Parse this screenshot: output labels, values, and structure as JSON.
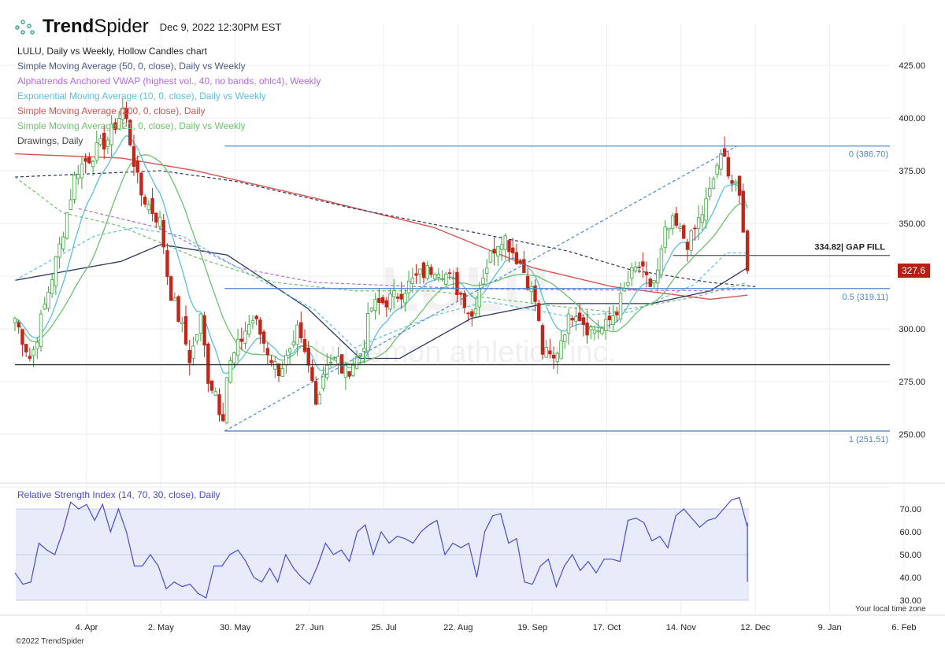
{
  "header": {
    "brand_bold": "Trend",
    "brand_light": "Spider",
    "timestamp": "Dec 9, 2022 12:30PM EST",
    "copyright": "©2022 TrendSpider",
    "timezone_note": "Your local time zone",
    "watermark": "LULU",
    "watermark_sub": "lululemon athletica inc."
  },
  "legend": [
    {
      "text": "LULU, Daily vs Weekly, Hollow Candles chart",
      "color": "#222222"
    },
    {
      "text": "Simple Moving Average (50, 0, close), Daily vs Weekly",
      "color": "#4a5a80"
    },
    {
      "text": "Alphatrends Anchored VWAP (highest vol., 40, no bands, ohlc4), Weekly",
      "color": "#b36ae0"
    },
    {
      "text": "Exponential Moving Average (10, 0, close), Daily vs Weekly",
      "color": "#5bbfe0"
    },
    {
      "text": "Simple Moving Average (200, 0, close), Daily",
      "color": "#d9534f"
    },
    {
      "text": "Simple Moving Average (21, 0, close), Daily vs Weekly",
      "color": "#6cc26c"
    },
    {
      "text": "Drawings, Daily",
      "color": "#444444"
    }
  ],
  "colors": {
    "up": "#3aa83a",
    "down": "#c0271b",
    "sma50": "#2c3560",
    "vwap": "#b36ae0",
    "ema10": "#5bbfe0",
    "sma200": "#d9534f",
    "sma21": "#6cc26c",
    "fib": "#4a86d0",
    "rsi": "#4a4ad0",
    "rsi_band": "#e8ecfa"
  },
  "chart_data": {
    "type": "candlestick",
    "symbol": "LULU",
    "ylim": [
      225,
      432
    ],
    "y_ticks": [
      "425.00",
      "400.00",
      "375.00",
      "350.00",
      "300.00",
      "275.00",
      "250.00"
    ],
    "y_tick_values": [
      425,
      400,
      375,
      350,
      300,
      275,
      250
    ],
    "x_unit": "calendar days since 2022-03-08",
    "x_ticks": [
      {
        "label": "4. Apr",
        "day": 27
      },
      {
        "label": "2. May",
        "day": 55
      },
      {
        "label": "30. May",
        "day": 83
      },
      {
        "label": "27. Jun",
        "day": 111
      },
      {
        "label": "25. Jul",
        "day": 139
      },
      {
        "label": "22. Aug",
        "day": 167
      },
      {
        "label": "19. Sep",
        "day": 195
      },
      {
        "label": "17. Oct",
        "day": 223
      },
      {
        "label": "14. Nov",
        "day": 251
      },
      {
        "label": "12. Dec",
        "day": 279
      },
      {
        "label": "9. Jan",
        "day": 307
      },
      {
        "label": "6. Feb",
        "day": 335
      }
    ],
    "close_keypoints": [
      [
        0,
        305
      ],
      [
        6,
        285
      ],
      [
        17,
        340
      ],
      [
        23,
        375
      ],
      [
        35,
        390
      ],
      [
        41,
        405
      ],
      [
        47,
        365
      ],
      [
        55,
        350
      ],
      [
        58,
        320
      ],
      [
        63,
        300
      ],
      [
        66,
        285
      ],
      [
        70,
        305
      ],
      [
        73,
        275
      ],
      [
        76,
        270
      ],
      [
        78,
        255
      ],
      [
        80,
        280
      ],
      [
        87,
        300
      ],
      [
        90,
        305
      ],
      [
        95,
        290
      ],
      [
        99,
        280
      ],
      [
        105,
        290
      ],
      [
        106,
        300
      ],
      [
        111,
        280
      ],
      [
        114,
        265
      ],
      [
        117,
        285
      ],
      [
        122,
        285
      ],
      [
        124,
        278
      ],
      [
        131,
        290
      ],
      [
        134,
        310
      ],
      [
        143,
        315
      ],
      [
        152,
        325
      ],
      [
        159,
        330
      ],
      [
        163,
        325
      ],
      [
        169,
        315
      ],
      [
        172,
        305
      ],
      [
        176,
        325
      ],
      [
        181,
        340
      ],
      [
        184,
        345
      ],
      [
        187,
        338
      ],
      [
        191,
        330
      ],
      [
        194,
        320
      ],
      [
        197,
        310
      ],
      [
        198,
        290
      ],
      [
        203,
        285
      ],
      [
        207,
        300
      ],
      [
        211,
        310
      ],
      [
        216,
        300
      ],
      [
        222,
        300
      ],
      [
        227,
        310
      ],
      [
        232,
        325
      ],
      [
        235,
        330
      ],
      [
        239,
        320
      ],
      [
        242,
        325
      ],
      [
        245,
        345
      ],
      [
        248,
        350
      ],
      [
        251,
        345
      ],
      [
        254,
        340
      ],
      [
        257,
        350
      ],
      [
        259,
        355
      ],
      [
        262,
        365
      ],
      [
        265,
        380
      ],
      [
        268,
        380
      ],
      [
        270,
        370
      ],
      [
        272,
        370
      ],
      [
        276,
        327.6
      ]
    ],
    "last_price": "327.6",
    "overlays": {
      "sma50_weekly_dashed": [
        [
          0,
          372
        ],
        [
          55,
          375
        ],
        [
          83,
          370
        ],
        [
          128,
          357
        ],
        [
          172,
          346
        ],
        [
          208,
          337
        ],
        [
          232,
          328
        ],
        [
          262,
          322
        ],
        [
          279,
          320
        ]
      ],
      "sma50_daily": [
        [
          0,
          323
        ],
        [
          40,
          332
        ],
        [
          55,
          340
        ],
        [
          80,
          335
        ],
        [
          110,
          310
        ],
        [
          130,
          286
        ],
        [
          145,
          286
        ],
        [
          172,
          305
        ],
        [
          200,
          312
        ],
        [
          220,
          312
        ],
        [
          240,
          312
        ],
        [
          262,
          318
        ],
        [
          276,
          329
        ]
      ],
      "sma200_daily": [
        [
          0,
          383
        ],
        [
          40,
          381
        ],
        [
          68,
          375
        ],
        [
          113,
          362
        ],
        [
          158,
          348
        ],
        [
          195,
          329
        ],
        [
          225,
          320
        ],
        [
          262,
          314
        ],
        [
          276,
          316
        ]
      ],
      "vwap_weekly": [
        [
          24,
          357
        ],
        [
          54,
          348
        ],
        [
          84,
          329
        ],
        [
          113,
          322
        ],
        [
          172,
          319
        ],
        [
          262,
          318
        ],
        [
          276,
          319
        ]
      ],
      "ema10_weekly_dashed": [
        [
          0,
          323
        ],
        [
          30,
          344
        ],
        [
          45,
          348
        ],
        [
          63,
          344
        ],
        [
          84,
          329
        ],
        [
          113,
          309
        ],
        [
          128,
          291
        ],
        [
          157,
          306
        ],
        [
          178,
          313
        ],
        [
          208,
          306
        ],
        [
          232,
          308
        ],
        [
          256,
          321
        ],
        [
          268,
          336
        ],
        [
          276,
          336
        ]
      ],
      "sma21_weekly_dashed": [
        [
          0,
          372
        ],
        [
          18,
          355
        ],
        [
          39,
          349
        ],
        [
          68,
          334
        ],
        [
          98,
          322
        ],
        [
          128,
          318
        ],
        [
          157,
          318
        ],
        [
          202,
          311
        ],
        [
          225,
          308
        ],
        [
          256,
          315
        ],
        [
          276,
          322
        ]
      ]
    },
    "drawings": [
      {
        "label": "0 (386.70)",
        "price": 386.7,
        "from_day": 79
      },
      {
        "label": "0.5 (319.11)",
        "price": 319.11,
        "from_day": 79
      },
      {
        "label": "1 (251.51)",
        "price": 251.51,
        "from_day": 79
      },
      {
        "label": "",
        "price": 283,
        "from_day": 0
      },
      {
        "label": "334.82| GAP FILL",
        "price": 334.82,
        "from_day": 248
      }
    ],
    "trendline": [
      [
        79,
        251.51
      ],
      [
        272,
        386.7
      ]
    ],
    "rsi": {
      "title": "Relative Strength Index (14, 70, 30, close), Daily",
      "y_ticks": [
        "70.00",
        "60.00",
        "50.00",
        "40.00",
        "30.00"
      ],
      "y_tick_values": [
        70,
        60,
        50,
        40,
        30
      ],
      "ylim": [
        28,
        78
      ],
      "day_step": 3,
      "values": [
        42,
        37,
        38,
        55,
        52,
        50,
        60,
        73,
        70,
        72,
        65,
        72,
        60,
        70,
        60,
        45,
        45,
        50,
        45,
        35,
        38,
        36,
        37,
        33,
        31,
        45,
        45,
        50,
        52,
        47,
        40,
        38,
        44,
        38,
        50,
        44,
        40,
        37,
        45,
        55,
        50,
        52,
        47,
        60,
        63,
        50,
        60,
        55,
        58,
        57,
        55,
        60,
        63,
        65,
        50,
        55,
        53,
        55,
        40,
        60,
        67,
        68,
        55,
        57,
        38,
        37,
        45,
        48,
        36,
        45,
        50,
        43,
        47,
        42,
        48,
        48,
        47,
        65,
        66,
        64,
        56,
        58,
        53,
        67,
        70,
        66,
        62,
        65,
        66,
        70,
        74,
        75,
        62,
        64,
        38
      ]
    }
  }
}
